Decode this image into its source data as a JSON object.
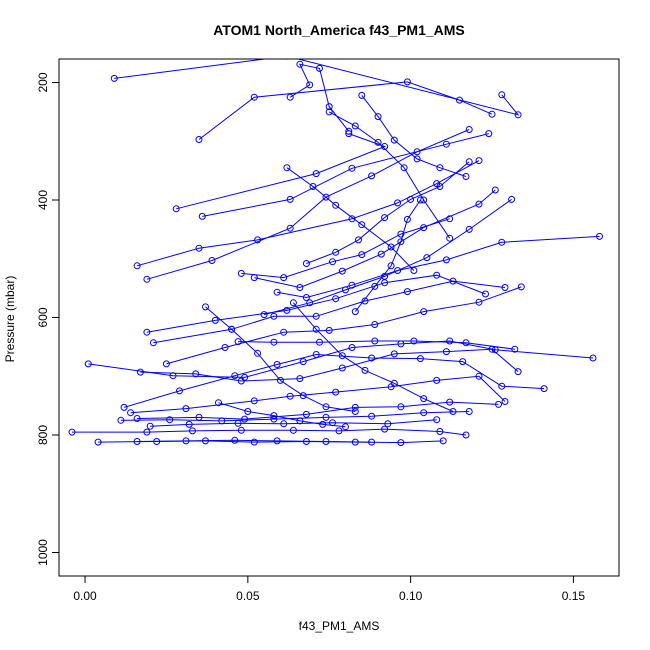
{
  "chart_data": {
    "type": "line",
    "title": "ATOM1 North_America f43_PM1_AMS",
    "xlabel": "f43_PM1_AMS",
    "ylabel": "Pressure (mbar)",
    "xlim": [
      -0.008,
      0.164
    ],
    "ylim": [
      1040,
      160
    ],
    "y_reversed": true,
    "x_ticks": [
      0.0,
      0.05,
      0.1,
      0.15
    ],
    "x_tick_labels": [
      "0.00",
      "0.05",
      "0.10",
      "0.15"
    ],
    "y_ticks": [
      200,
      400,
      600,
      800,
      1000
    ],
    "y_tick_labels": [
      "200",
      "400",
      "600",
      "800",
      "1000"
    ],
    "grid": false,
    "legend": "none",
    "series_color": "#0000ff",
    "series": [
      {
        "x": [
          0.009,
          0.062,
          0.133,
          0.128
        ],
        "y": [
          193,
          155,
          255,
          221
        ]
      },
      {
        "x": [
          0.035,
          0.052,
          0.099,
          0.115,
          0.125
        ],
        "y": [
          297,
          225,
          199,
          230,
          254
        ]
      },
      {
        "x": [
          0.028,
          0.071,
          0.092,
          0.081
        ],
        "y": [
          415,
          355,
          309,
          287
        ]
      },
      {
        "x": [
          0.036,
          0.063,
          0.082,
          0.111,
          0.124
        ],
        "y": [
          428,
          399,
          346,
          305,
          287
        ]
      },
      {
        "x": [
          0.016,
          0.035,
          0.053,
          0.082,
          0.096,
          0.108,
          0.121
        ],
        "y": [
          512,
          482,
          468,
          432,
          405,
          372,
          333
        ]
      },
      {
        "x": [
          0.019,
          0.039,
          0.063,
          0.074,
          0.088,
          0.102,
          0.118
        ],
        "y": [
          535,
          503,
          448,
          395,
          359,
          318,
          280
        ]
      },
      {
        "x": [
          0.048,
          0.061,
          0.076,
          0.085,
          0.097,
          0.112
        ],
        "y": [
          525,
          532,
          505,
          493,
          458,
          432
        ]
      },
      {
        "x": [
          0.052,
          0.066,
          0.079,
          0.091,
          0.104,
          0.121,
          0.126
        ],
        "y": [
          532,
          549,
          521,
          492,
          447,
          407,
          383
        ]
      },
      {
        "x": [
          0.059,
          0.068,
          0.082,
          0.096,
          0.111,
          0.128,
          0.158
        ],
        "y": [
          557,
          566,
          545,
          520,
          502,
          472,
          462
        ]
      },
      {
        "x": [
          0.055,
          0.069,
          0.08,
          0.092,
          0.105,
          0.118,
          0.131
        ],
        "y": [
          595,
          575,
          553,
          530,
          498,
          450,
          399
        ]
      },
      {
        "x": [
          0.019,
          0.04,
          0.062,
          0.077,
          0.092,
          0.108,
          0.123
        ],
        "y": [
          625,
          605,
          588,
          568,
          541,
          528,
          560
        ]
      },
      {
        "x": [
          0.021,
          0.045,
          0.058,
          0.071,
          0.086,
          0.099,
          0.113,
          0.129
        ],
        "y": [
          643,
          620,
          598,
          598,
          572,
          556,
          538,
          549
        ]
      },
      {
        "x": [
          0.047,
          0.058,
          0.072,
          0.089,
          0.101,
          0.117,
          0.132
        ],
        "y": [
          641,
          642,
          642,
          640,
          640,
          643,
          654
        ]
      },
      {
        "x": [
          0.025,
          0.043,
          0.061,
          0.075,
          0.089,
          0.104,
          0.121,
          0.134
        ],
        "y": [
          679,
          651,
          625,
          622,
          612,
          590,
          574,
          548
        ]
      },
      {
        "x": [
          0.001,
          0.027,
          0.049,
          0.067,
          0.082,
          0.097,
          0.112,
          0.126,
          0.156
        ],
        "y": [
          679,
          699,
          702,
          675,
          651,
          645,
          640,
          655,
          669
        ]
      },
      {
        "x": [
          0.017,
          0.034,
          0.048,
          0.066,
          0.079,
          0.095,
          0.111,
          0.125,
          0.133
        ],
        "y": [
          693,
          696,
          708,
          704,
          686,
          662,
          658,
          654,
          692
        ]
      },
      {
        "x": [
          0.012,
          0.029,
          0.046,
          0.059,
          0.071,
          0.088,
          0.103,
          0.116,
          0.128,
          0.141
        ],
        "y": [
          753,
          725,
          699,
          680,
          663,
          669,
          670,
          675,
          717,
          721
        ]
      },
      {
        "x": [
          0.014,
          0.031,
          0.052,
          0.063,
          0.077,
          0.094,
          0.108,
          0.121,
          0.129
        ],
        "y": [
          762,
          755,
          742,
          734,
          727,
          718,
          707,
          700,
          743
        ]
      },
      {
        "x": [
          0.016,
          0.035,
          0.049,
          0.068,
          0.083,
          0.097,
          0.112,
          0.127
        ],
        "y": [
          772,
          770,
          773,
          765,
          753,
          752,
          744,
          748
        ]
      },
      {
        "x": [
          0.011,
          0.026,
          0.042,
          0.058,
          0.074,
          0.088,
          0.104,
          0.118
        ],
        "y": [
          775,
          774,
          776,
          773,
          770,
          768,
          762,
          760
        ]
      },
      {
        "x": [
          0.02,
          0.032,
          0.047,
          0.061,
          0.076,
          0.093,
          0.108
        ],
        "y": [
          785,
          782,
          780,
          781,
          779,
          781,
          774
        ]
      },
      {
        "x": [
          -0.004,
          0.019,
          0.033,
          0.048,
          0.064,
          0.078,
          0.092,
          0.109,
          0.117
        ],
        "y": [
          795,
          795,
          793,
          792,
          792,
          793,
          790,
          794,
          800
        ]
      },
      {
        "x": [
          0.004,
          0.022,
          0.037,
          0.052,
          0.068,
          0.083,
          0.097,
          0.11
        ],
        "y": [
          812,
          811,
          810,
          812,
          811,
          812,
          813,
          810
        ]
      },
      {
        "x": [
          0.016,
          0.031,
          0.046,
          0.059,
          0.074,
          0.088
        ],
        "y": [
          811,
          810,
          809,
          810,
          811,
          812
        ]
      },
      {
        "x": [
          0.063,
          0.069,
          0.066,
          0.072,
          0.075,
          0.081
        ],
        "y": [
          225,
          204,
          169,
          176,
          241,
          283
        ]
      },
      {
        "x": [
          0.075,
          0.083,
          0.09,
          0.098,
          0.104,
          0.112
        ],
        "y": [
          250,
          274,
          302,
          345,
          400,
          465
        ]
      },
      {
        "x": [
          0.062,
          0.07,
          0.077,
          0.085,
          0.094,
          0.101
        ],
        "y": [
          345,
          377,
          409,
          442,
          480,
          520
        ]
      },
      {
        "x": [
          0.064,
          0.071,
          0.079,
          0.086,
          0.095,
          0.104,
          0.113
        ],
        "y": [
          575,
          620,
          665,
          690,
          712,
          738,
          760
        ]
      },
      {
        "x": [
          0.037,
          0.045,
          0.053,
          0.06,
          0.067,
          0.074,
          0.083
        ],
        "y": [
          582,
          620,
          661,
          707,
          733,
          752,
          760
        ]
      },
      {
        "x": [
          0.041,
          0.05,
          0.058,
          0.066,
          0.073,
          0.08
        ],
        "y": [
          745,
          760,
          767,
          776,
          782,
          786
        ]
      },
      {
        "x": [
          0.083,
          0.089,
          0.094,
          0.097,
          0.099,
          0.103
        ],
        "y": [
          590,
          547,
          512,
          471,
          433,
          400
        ]
      },
      {
        "x": [
          0.085,
          0.09,
          0.095,
          0.102,
          0.109,
          0.117
        ],
        "y": [
          222,
          258,
          298,
          330,
          345,
          360
        ]
      },
      {
        "x": [
          0.068,
          0.077,
          0.084,
          0.092,
          0.1,
          0.109,
          0.118
        ],
        "y": [
          508,
          489,
          468,
          430,
          399,
          377,
          335
        ]
      }
    ]
  }
}
